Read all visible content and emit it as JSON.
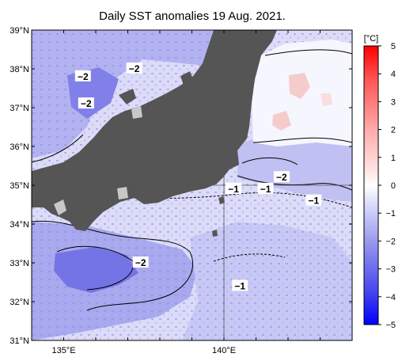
{
  "chart_data": {
    "type": "heatmap",
    "title": "Daily SST anomalies 19 Aug. 2021.",
    "x_ticks": [
      "135°E",
      "140°E"
    ],
    "x_tick_values": [
      135,
      140
    ],
    "y_ticks": [
      "39°N",
      "38°N",
      "37°N",
      "36°N",
      "35°N",
      "34°N",
      "33°N",
      "32°N",
      "31°N"
    ],
    "y_tick_values": [
      39,
      38,
      37,
      36,
      35,
      34,
      33,
      32,
      31
    ],
    "xlim": [
      134,
      144
    ],
    "ylim": [
      31,
      39
    ],
    "colorbar": {
      "unit": "[°C]",
      "min": -5,
      "max": 5,
      "tick_labels": [
        "5",
        "4",
        "3",
        "2",
        "1",
        "0",
        "−1",
        "−2",
        "−3",
        "−4",
        "−5"
      ],
      "tick_values": [
        5,
        4,
        3,
        2,
        1,
        0,
        -1,
        -2,
        -3,
        -4,
        -5
      ]
    },
    "contour_labels": [
      {
        "text": "−2",
        "lon": 135.6,
        "lat": 37.8
      },
      {
        "text": "−2",
        "lon": 135.7,
        "lat": 37.1
      },
      {
        "text": "−2",
        "lon": 137.2,
        "lat": 38.0
      },
      {
        "text": "−2",
        "lon": 141.8,
        "lat": 35.2
      },
      {
        "text": "−1",
        "lon": 140.3,
        "lat": 34.9
      },
      {
        "text": "−1",
        "lon": 141.3,
        "lat": 34.9
      },
      {
        "text": "−1",
        "lon": 142.8,
        "lat": 34.6
      },
      {
        "text": "−2",
        "lon": 137.4,
        "lat": 33.0
      },
      {
        "text": "−1",
        "lon": 140.5,
        "lat": 32.4
      }
    ],
    "grid": {
      "lon": [
        140
      ],
      "lat": [
        35
      ]
    }
  }
}
